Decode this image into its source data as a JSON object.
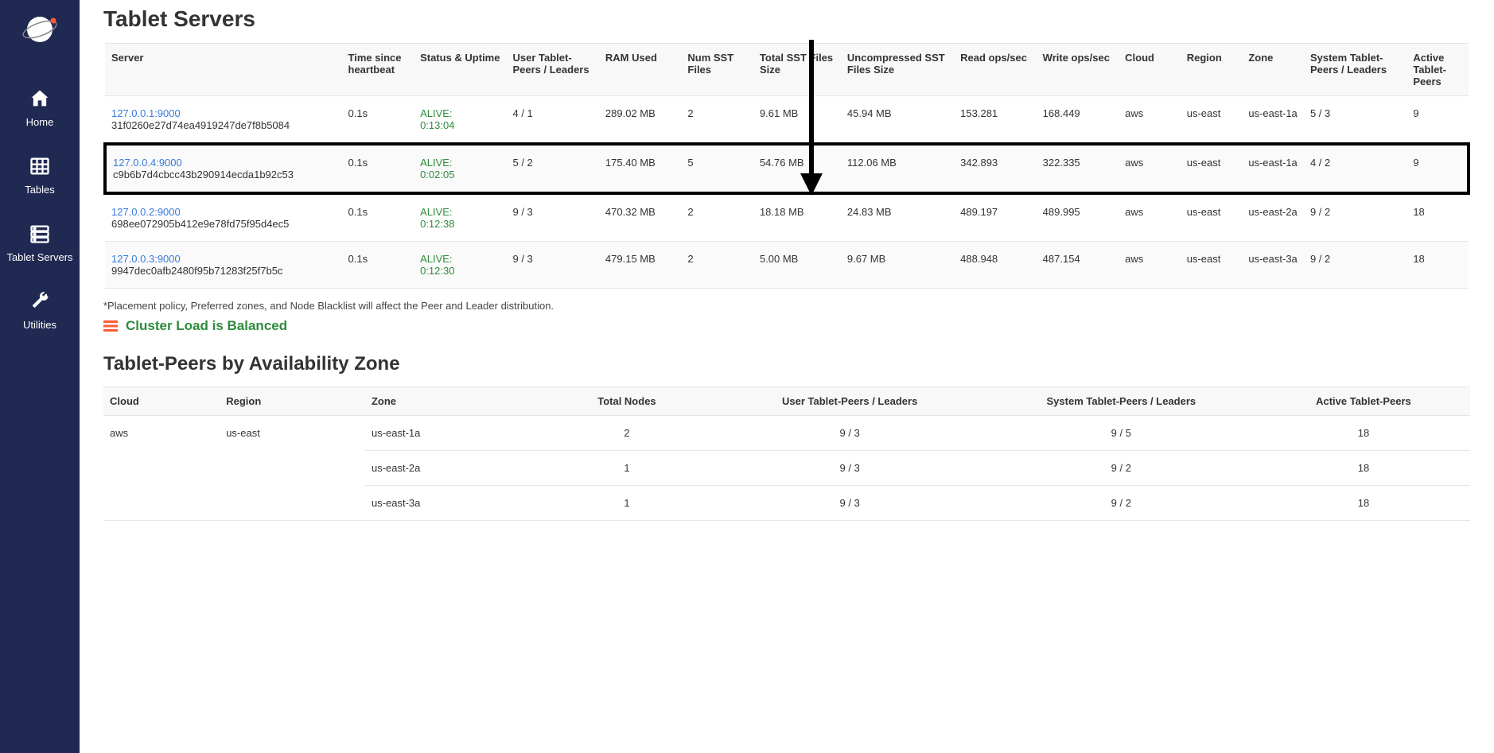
{
  "sidebar": {
    "items": [
      {
        "label": "Home"
      },
      {
        "label": "Tables"
      },
      {
        "label": "Tablet Servers"
      },
      {
        "label": "Utilities"
      }
    ]
  },
  "page": {
    "title": "Tablet Servers",
    "columns": [
      "Server",
      "Time since heartbeat",
      "Status & Uptime",
      "User Tablet-Peers / Leaders",
      "RAM Used",
      "Num SST Files",
      "Total SST Files Size",
      "Uncompressed SST Files Size",
      "Read ops/sec",
      "Write ops/sec",
      "Cloud",
      "Region",
      "Zone",
      "System Tablet-Peers / Leaders",
      "Active Tablet-Peers"
    ],
    "rows": [
      {
        "server": "127.0.0.1:9000",
        "uuid": "31f0260e27d74ea4919247de7f8b5084",
        "hb": "0.1s",
        "status": "ALIVE:",
        "uptime": "0:13:04",
        "utp": "4 / 1",
        "ram": "289.02 MB",
        "nsst": "2",
        "tsst": "9.61 MB",
        "usst": "45.94 MB",
        "rops": "153.281",
        "wops": "168.449",
        "cloud": "aws",
        "region": "us-east",
        "zone": "us-east-1a",
        "stp": "5 / 3",
        "atp": "9",
        "highlight": false,
        "striped": false
      },
      {
        "server": "127.0.0.4:9000",
        "uuid": "c9b6b7d4cbcc43b290914ecda1b92c53",
        "hb": "0.1s",
        "status": "ALIVE:",
        "uptime": "0:02:05",
        "utp": "5 / 2",
        "ram": "175.40 MB",
        "nsst": "5",
        "tsst": "54.76 MB",
        "usst": "112.06 MB",
        "rops": "342.893",
        "wops": "322.335",
        "cloud": "aws",
        "region": "us-east",
        "zone": "us-east-1a",
        "stp": "4 / 2",
        "atp": "9",
        "highlight": true,
        "striped": true
      },
      {
        "server": "127.0.0.2:9000",
        "uuid": "698ee072905b412e9e78fd75f95d4ec5",
        "hb": "0.1s",
        "status": "ALIVE:",
        "uptime": "0:12:38",
        "utp": "9 / 3",
        "ram": "470.32 MB",
        "nsst": "2",
        "tsst": "18.18 MB",
        "usst": "24.83 MB",
        "rops": "489.197",
        "wops": "489.995",
        "cloud": "aws",
        "region": "us-east",
        "zone": "us-east-2a",
        "stp": "9 / 2",
        "atp": "18",
        "highlight": false,
        "striped": false
      },
      {
        "server": "127.0.0.3:9000",
        "uuid": "9947dec0afb2480f95b71283f25f7b5c",
        "hb": "0.1s",
        "status": "ALIVE:",
        "uptime": "0:12:30",
        "utp": "9 / 3",
        "ram": "479.15 MB",
        "nsst": "2",
        "tsst": "5.00 MB",
        "usst": "9.67 MB",
        "rops": "488.948",
        "wops": "487.154",
        "cloud": "aws",
        "region": "us-east",
        "zone": "us-east-3a",
        "stp": "9 / 2",
        "atp": "18",
        "highlight": false,
        "striped": true
      }
    ],
    "note": "*Placement policy, Preferred zones, and Node Blacklist will affect the Peer and Leader distribution.",
    "balanced": "Cluster Load is Balanced"
  },
  "zones": {
    "title": "Tablet-Peers by Availability Zone",
    "columns": [
      "Cloud",
      "Region",
      "Zone",
      "Total Nodes",
      "User Tablet-Peers / Leaders",
      "System Tablet-Peers / Leaders",
      "Active Tablet-Peers"
    ],
    "cloud": "aws",
    "region": "us-east",
    "rows": [
      {
        "zone": "us-east-1a",
        "nodes": "2",
        "utp": "9 / 3",
        "stp": "9 / 5",
        "atp": "18"
      },
      {
        "zone": "us-east-2a",
        "nodes": "1",
        "utp": "9 / 3",
        "stp": "9 / 2",
        "atp": "18"
      },
      {
        "zone": "us-east-3a",
        "nodes": "1",
        "utp": "9 / 3",
        "stp": "9 / 2",
        "atp": "18"
      }
    ]
  },
  "colors": {
    "sidebar_bg": "#202951",
    "link": "#3a7ad9",
    "alive": "#2e8b3d",
    "border": "#e5e5e5",
    "header_bg": "#f8f8f8"
  }
}
